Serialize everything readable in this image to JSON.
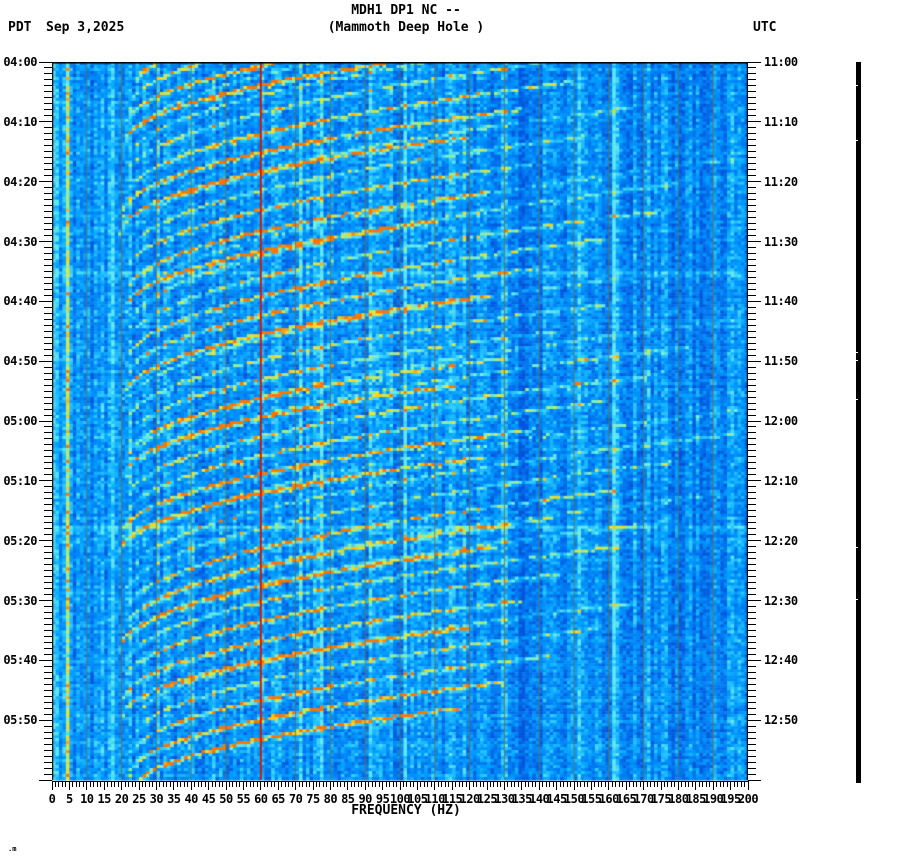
{
  "header": {
    "title": "MDH1 DP1 NC --",
    "subtitle": "(Mammoth Deep Hole )",
    "tz_left": "PDT",
    "date": "Sep 3,2025",
    "tz_right": "UTC"
  },
  "watermark": ".m",
  "chart_data": {
    "type": "heatmap",
    "subtype": "seismic-spectrogram",
    "title": "MDH1 DP1 NC --",
    "subtitle": "(Mammoth Deep Hole )",
    "date": "Sep 3,2025",
    "xlabel": "FREQUENCY (HZ)",
    "x_range_hz": [
      0,
      200
    ],
    "x_label_step_hz": 5,
    "x_minor_tick_hz": 1,
    "x_tick_labels": [
      "0",
      "5",
      "10",
      "15",
      "20",
      "25",
      "30",
      "35",
      "40",
      "45",
      "50",
      "55",
      "60",
      "65",
      "70",
      "75",
      "80",
      "85",
      "90",
      "95",
      "100",
      "105",
      "110",
      "115",
      "120",
      "125",
      "130",
      "135",
      "140",
      "145",
      "150",
      "155",
      "160",
      "165",
      "170",
      "175",
      "180",
      "185",
      "190",
      "195",
      "200"
    ],
    "y_left_axis": {
      "timezone": "PDT",
      "start": "04:00",
      "end": "06:00",
      "major_tick_min": 10,
      "minor_tick_min": 1,
      "labels": [
        "04:00",
        "04:10",
        "04:20",
        "04:30",
        "04:40",
        "04:50",
        "05:00",
        "05:10",
        "05:20",
        "05:30",
        "05:40",
        "05:50"
      ]
    },
    "y_right_axis": {
      "timezone": "UTC",
      "start": "11:00",
      "end": "13:00",
      "major_tick_min": 10,
      "minor_tick_min": 1,
      "labels": [
        "11:00",
        "11:10",
        "11:20",
        "11:30",
        "11:40",
        "11:50",
        "12:00",
        "12:10",
        "12:20",
        "12:30",
        "12:40",
        "12:50"
      ]
    },
    "grid": {
      "vertical_every_hz": 10,
      "color": "#786b3c"
    },
    "mains_hum_line_hz": 60,
    "low_freq_noise_band_hz": [
      0,
      1.5
    ],
    "persistent_narrowband_line_hz": 4.6,
    "high_freq_quiet_band_hz": [
      133,
      141
    ],
    "noise_burst_rows_min": [
      35,
      77.5
    ],
    "colors": {
      "mains_line": "#d81000",
      "gridline": "#786b3c",
      "border": "#000000",
      "amplitude_bar": "#000000",
      "background_low": "#0098f8",
      "background_high": "#50dcff",
      "arc_bright": "#ffe822"
    },
    "colormap_stops": [
      [
        0.0,
        [
          0,
          70,
          210
        ]
      ],
      [
        0.2,
        [
          0,
          115,
          238
        ]
      ],
      [
        0.4,
        [
          0,
          158,
          255
        ]
      ],
      [
        0.55,
        [
          40,
          198,
          255
        ]
      ],
      [
        0.68,
        [
          108,
          238,
          235
        ]
      ],
      [
        0.78,
        [
          165,
          235,
          125
        ]
      ],
      [
        0.87,
        [
          232,
          230,
          55
        ]
      ],
      [
        0.95,
        [
          255,
          196,
          18
        ]
      ],
      [
        1.0,
        [
          255,
          115,
          0
        ]
      ]
    ],
    "tremor_events": [
      {
        "t0_min": 4.0,
        "f0_hz": 24,
        "span_hz": 100,
        "rise_min": 16,
        "arcs": 5,
        "gap_min": 3.2,
        "amp": 0.8
      },
      {
        "t0_min": 13.5,
        "f0_hz": 21,
        "span_hz": 95,
        "rise_min": 15,
        "arcs": 6,
        "gap_min": 3.0,
        "amp": 0.95
      },
      {
        "t0_min": 28.5,
        "f0_hz": 20,
        "span_hz": 100,
        "rise_min": 16,
        "arcs": 6,
        "gap_min": 3.0,
        "amp": 1.0
      },
      {
        "t0_min": 41.5,
        "f0_hz": 21,
        "span_hz": 90,
        "rise_min": 15,
        "arcs": 5,
        "gap_min": 3.2,
        "amp": 0.85
      },
      {
        "t0_min": 56.0,
        "f0_hz": 20,
        "span_hz": 105,
        "rise_min": 17,
        "arcs": 6,
        "gap_min": 3.0,
        "amp": 1.0
      },
      {
        "t0_min": 69.0,
        "f0_hz": 21,
        "span_hz": 95,
        "rise_min": 15,
        "arcs": 5,
        "gap_min": 3.0,
        "amp": 0.9
      },
      {
        "t0_min": 82.0,
        "f0_hz": 20,
        "span_hz": 105,
        "rise_min": 16,
        "arcs": 6,
        "gap_min": 3.0,
        "amp": 1.05
      },
      {
        "t0_min": 98.0,
        "f0_hz": 20,
        "span_hz": 108,
        "rise_min": 17,
        "arcs": 6,
        "gap_min": 3.0,
        "amp": 1.05
      },
      {
        "t0_min": 109.5,
        "f0_hz": 20,
        "span_hz": 100,
        "rise_min": 15,
        "arcs": 6,
        "gap_min": 3.0,
        "amp": 1.0
      },
      {
        "t0_min": 122.0,
        "f0_hz": 22,
        "span_hz": 95,
        "rise_min": 14,
        "arcs": 5,
        "gap_min": 3.0,
        "amp": 0.95
      }
    ],
    "amplitude_bar": {
      "nick_fractions": [
        0.032,
        0.108,
        0.402,
        0.414,
        0.468,
        0.672,
        0.745
      ]
    },
    "description": "Spectrogram: repeating fans of upward-gliding harmonic tremor arcs (20-130 Hz) on a blue noise background; red vertical line at 60 Hz mains hum; solid black clipped amplitude trace at far right."
  }
}
